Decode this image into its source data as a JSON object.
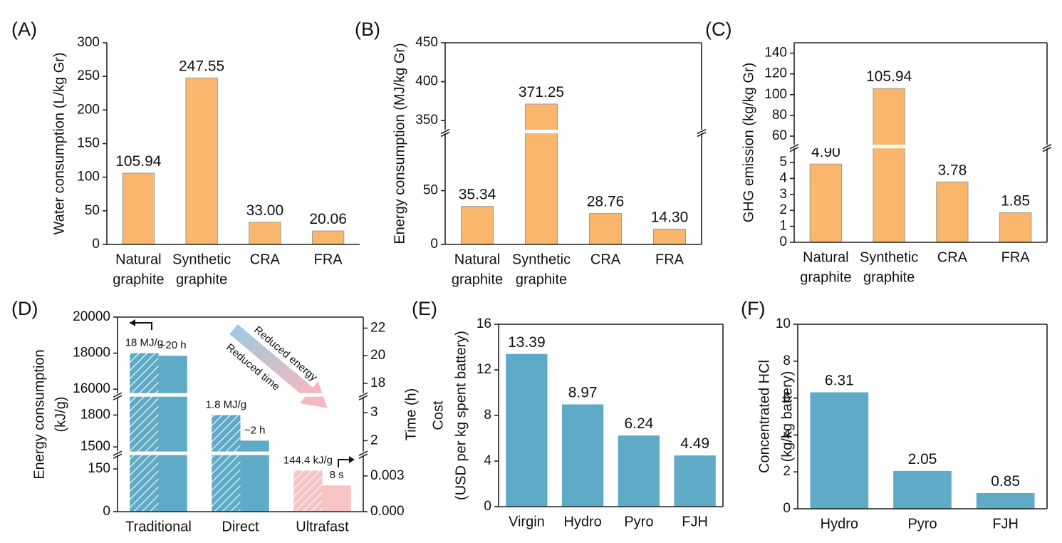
{
  "chart_data": [
    {
      "label": "(A)",
      "type": "bar",
      "ylabel": [
        "Water consumption (L/kg Gr)"
      ],
      "categories": [
        "Natural graphite",
        "Synthetic graphite",
        "CRA",
        "FRA"
      ],
      "values": [
        105.94,
        247.55,
        33.0,
        20.06
      ],
      "value_labels": [
        "105.94",
        "247.55",
        "33.00",
        "20.06"
      ],
      "color": "#f9b66c",
      "ylim": [
        0,
        300
      ],
      "yticks": [
        0,
        50,
        100,
        150,
        200,
        250,
        300
      ]
    },
    {
      "label": "(B)",
      "type": "bar",
      "ylabel": [
        "Energy consumption (MJ/kg Gr)"
      ],
      "categories": [
        "Natural graphite",
        "Synthetic graphite",
        "CRA",
        "FRA"
      ],
      "values": [
        35.34,
        371.25,
        28.76,
        14.3
      ],
      "value_labels": [
        "35.34",
        "371.25",
        "28.76",
        "14.30"
      ],
      "color": "#f9b66c",
      "ylim": [
        0,
        450
      ],
      "ybreak": [
        [
          105,
          336
        ]
      ],
      "yticks": [
        0,
        50,
        350,
        400,
        450
      ]
    },
    {
      "label": "(C)",
      "type": "bar",
      "ylabel": [
        "GHG emission (kg/kg Gr)"
      ],
      "categories": [
        "Natural graphite",
        "Synthetic graphite",
        "CRA",
        "FRA"
      ],
      "values": [
        4.9,
        105.94,
        3.78,
        1.85
      ],
      "value_labels": [
        "4.90",
        "105.94",
        "3.78",
        "1.85"
      ],
      "color": "#f9b66c",
      "ylim": [
        0,
        150
      ],
      "ybreak": [
        [
          6,
          50
        ]
      ],
      "yticks": [
        0,
        1,
        2,
        3,
        4,
        5,
        60,
        80,
        100,
        120,
        140
      ]
    },
    {
      "label": "(D)",
      "type": "bar",
      "ylabel": [
        "Energy consumption",
        "(kJ/g)"
      ],
      "y2label": [
        "Time (h)"
      ],
      "categories": [
        "Traditional",
        "Direct",
        "Ultrafast"
      ],
      "series": [
        {
          "name": "Energy",
          "hatch": true,
          "colors": [
            "#5eaac7",
            "#5eaac7",
            "#f7c4c4"
          ],
          "values": [
            18000,
            1800,
            144.4
          ],
          "value_labels": [
            "18 MJ/g",
            "1.8 MJ/g",
            "144.4 kJ/g"
          ]
        },
        {
          "name": "Time",
          "axis": "y2",
          "colors": [
            "#5eaac7",
            "#5eaac7",
            "#f7c4c4"
          ],
          "values": [
            20,
            2,
            0.0022
          ],
          "value_labels": [
            "~20 h",
            "~2 h",
            "8 s"
          ]
        }
      ],
      "ylim": [
        0,
        20000
      ],
      "ybreak": [
        [
          205,
          1440
        ],
        [
          1990,
          15680
        ]
      ],
      "yticks": [
        0,
        150,
        1500,
        1800,
        16000,
        18000,
        20000
      ],
      "y2lim": [
        0,
        22.8
      ],
      "y2break": [
        [
          0.0049,
          1.55
        ],
        [
          3.63,
          17.16
        ]
      ],
      "y2ticks": [
        {
          "value": 0,
          "label": "0.000"
        },
        0.003,
        2,
        3,
        18,
        20,
        22
      ],
      "annotations": [
        "Reduced energy",
        "Reduced time"
      ]
    },
    {
      "label": "(E)",
      "type": "bar",
      "ylabel": [
        "Cost",
        "(USD per kg spent battery)"
      ],
      "categories": [
        "Virgin",
        "Hydro",
        "Pyro",
        "FJH"
      ],
      "values": [
        13.39,
        8.97,
        6.24,
        4.49
      ],
      "color": "#5eaac7",
      "ylim": [
        0,
        16
      ],
      "yticks": [
        0,
        4,
        8,
        12,
        16
      ]
    },
    {
      "label": "(F)",
      "type": "bar",
      "ylabel": [
        "Concentrated HCl",
        "(kg/kg battery)"
      ],
      "categories": [
        "Hydro",
        "Pyro",
        "FJH"
      ],
      "values": [
        6.31,
        2.05,
        0.85
      ],
      "color": "#5eaac7",
      "ylim": [
        0,
        10
      ],
      "yticks": [
        0,
        2,
        4,
        6,
        8,
        10
      ]
    }
  ]
}
